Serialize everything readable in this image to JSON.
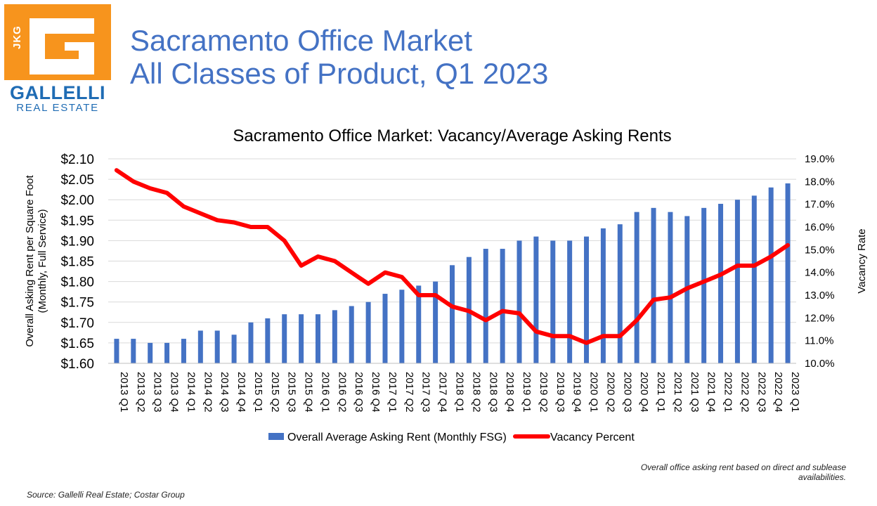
{
  "logo": {
    "letters": "JKG",
    "name": "GALLELLI",
    "sub": "REAL ESTATE",
    "icon": "gallelli-g-logo-icon",
    "colors": {
      "box": "#F7941D",
      "text": "#1F6CB4"
    }
  },
  "title": {
    "line1": "Sacramento Office Market",
    "line2": "All Classes of Product, Q1 2023"
  },
  "colors": {
    "title": "#4472C4",
    "bars": "#4472C4",
    "line": "#FF0000"
  },
  "chart_data": {
    "type": "bar",
    "title": "Sacramento Office Market: Vacancy/Average Asking Rents",
    "categories": [
      "2013 Q1",
      "2013 Q2",
      "2013 Q3",
      "2013 Q4",
      "2014 Q1",
      "2014 Q2",
      "2014 Q3",
      "2014 Q4",
      "2015 Q1",
      "2015 Q2",
      "2015 Q3",
      "2015 Q4",
      "2016 Q1",
      "2016 Q2",
      "2016 Q3",
      "2016 Q4",
      "2017 Q1",
      "2017 Q2",
      "2017 Q3",
      "2017 Q4",
      "2018 Q1",
      "2018 Q2",
      "2018 Q3",
      "2018 Q4",
      "2019 Q1",
      "2019 Q2",
      "2019 Q3",
      "2019 Q4",
      "2020 Q1",
      "2020 Q2",
      "2020 Q3",
      "2020 Q4",
      "2021 Q1",
      "2021 Q2",
      "2021 Q3",
      "2021 Q4",
      "2022 Q1",
      "2022 Q2",
      "2022 Q3",
      "2022 Q4",
      "2023 Q1"
    ],
    "ylabel_lines": [
      "Overall Asking Rent per Square Foot",
      "(Monthly, Full Service)"
    ],
    "y2label": "Vacancy Rate",
    "ylim": [
      1.6,
      2.1
    ],
    "y2lim": [
      10.0,
      19.0
    ],
    "yticks": [
      "$1.60",
      "$1.65",
      "$1.70",
      "$1.75",
      "$1.80",
      "$1.85",
      "$1.90",
      "$1.95",
      "$2.00",
      "$2.05",
      "$2.10"
    ],
    "y2ticks": [
      "10.0%",
      "11.0%",
      "12.0%",
      "13.0%",
      "14.0%",
      "15.0%",
      "16.0%",
      "17.0%",
      "18.0%",
      "19.0%"
    ],
    "grid": true,
    "legend_position": "bottom",
    "series": [
      {
        "name": "Overall Average Asking Rent (Monthly FSG)",
        "type": "bar",
        "axis": "left",
        "values": [
          1.66,
          1.66,
          1.65,
          1.65,
          1.66,
          1.68,
          1.68,
          1.67,
          1.7,
          1.71,
          1.72,
          1.72,
          1.72,
          1.73,
          1.74,
          1.75,
          1.77,
          1.78,
          1.79,
          1.8,
          1.84,
          1.86,
          1.88,
          1.88,
          1.9,
          1.91,
          1.9,
          1.9,
          1.91,
          1.93,
          1.94,
          1.97,
          1.98,
          1.97,
          1.96,
          1.98,
          1.99,
          2.0,
          2.01,
          2.03,
          2.04
        ]
      },
      {
        "name": "Vacancy Percent",
        "type": "line",
        "axis": "right",
        "values": [
          18.5,
          18.0,
          17.7,
          17.5,
          16.9,
          16.6,
          16.3,
          16.2,
          16.0,
          16.0,
          15.4,
          14.3,
          14.7,
          14.5,
          14.0,
          13.5,
          14.0,
          13.8,
          13.0,
          13.0,
          12.5,
          12.3,
          11.9,
          12.3,
          12.2,
          11.4,
          11.2,
          11.2,
          10.9,
          11.2,
          11.2,
          11.9,
          12.8,
          12.9,
          13.3,
          13.6,
          13.9,
          14.3,
          14.3,
          14.7,
          15.2
        ]
      }
    ]
  },
  "footnote": "Overall office asking rent based on direct and sublease availabilities.",
  "source": "Source: Gallelli Real Estate; Costar Group"
}
